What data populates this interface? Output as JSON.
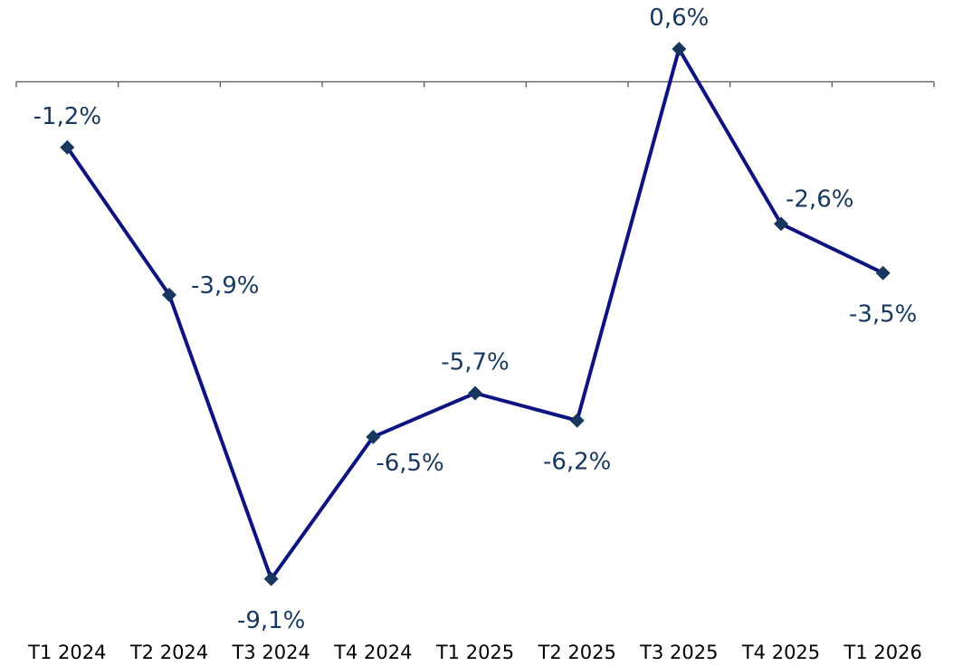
{
  "chart_data": {
    "type": "line",
    "categories": [
      "T1 2024",
      "T2 2024",
      "T3 2024",
      "T4 2024",
      "T1 2025",
      "T2 2025",
      "T3 2025",
      "T4 2025",
      "T1 2026"
    ],
    "series": [
      {
        "values": [
          -1.2,
          -3.9,
          -9.1,
          -6.5,
          -5.7,
          -6.2,
          0.6,
          -2.6,
          -3.5
        ],
        "labels": [
          "-1,2%",
          "-3,9%",
          "-9,1%",
          "-6,5%",
          "-5,7%",
          "-6,2%",
          "0,6%",
          "-2,6%",
          "-3,5%"
        ]
      }
    ],
    "title": "",
    "xlabel": "",
    "ylabel": "",
    "ylim": [
      -9.6,
      1.0
    ],
    "grid": false,
    "legend": "none",
    "x_axis_at_zero": true,
    "marker": "diamond",
    "colors": {
      "line": "#0d1480",
      "marker": "#17375e",
      "label": "#17375e"
    }
  }
}
